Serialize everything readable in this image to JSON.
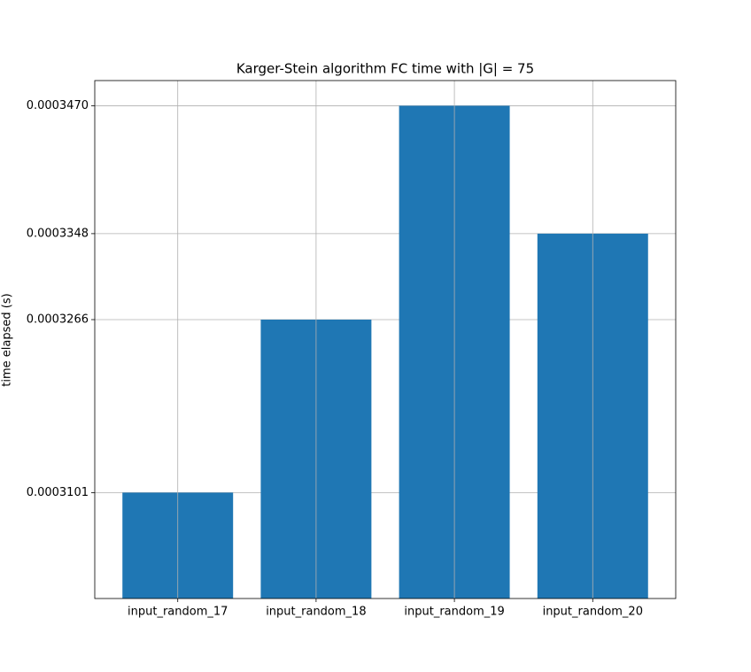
{
  "chart_data": {
    "type": "bar",
    "title": "Karger-Stein algorithm FC time with |G| = 75",
    "y_label": "time elapsed (s)",
    "categories": [
      "input_random_17",
      "input_random_18",
      "input_random_19",
      "input_random_20"
    ],
    "values": [
      0.0003101,
      0.0003266,
      0.000347,
      0.0003348
    ],
    "color": "#1f77b4",
    "ylim": [
      0.0003,
      0.0003494
    ],
    "yticks": [
      0.0003101,
      0.0003266,
      0.0003348,
      {
        "value": 0.000347,
        "label": "0.0003470"
      }
    ],
    "grid": true
  }
}
